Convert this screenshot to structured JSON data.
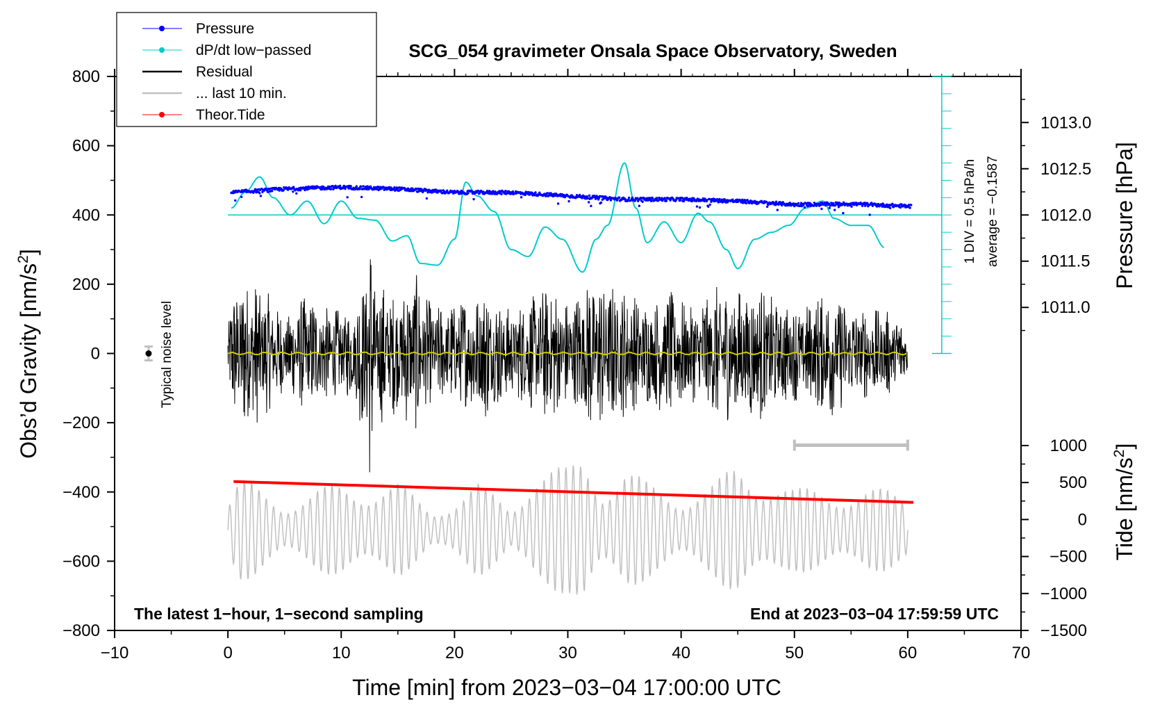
{
  "chart_data": {
    "type": "line",
    "title": "SCG_054 gravimeter Onsala Space Observatory, Sweden",
    "xlabel": "Time [min] from 2023−03−04 17:00:00 UTC",
    "ylabel_left_prefix": "Obs’d Gravity [nm/s",
    "ylabel_left_sup": "2",
    "ylabel_left_suffix": "]",
    "ylabel_pressure": "Pressure [hPa]",
    "ylabel_tide_prefix": "Tide [nm/s",
    "ylabel_tide_sup": "2",
    "ylabel_tide_suffix": "]",
    "xlim": [
      -10,
      70
    ],
    "ylim": [
      -800,
      800
    ],
    "x_ticks": [
      -10,
      0,
      10,
      20,
      30,
      40,
      50,
      60,
      70
    ],
    "x_tick_labels": [
      "−10",
      "0",
      "10",
      "20",
      "30",
      "40",
      "50",
      "60",
      "70"
    ],
    "y_ticks": [
      -800,
      -600,
      -400,
      -200,
      0,
      200,
      400,
      600,
      800
    ],
    "y_tick_labels": [
      "−800",
      "−600",
      "−400",
      "−200",
      "0",
      "200",
      "400",
      "600",
      "800"
    ],
    "pressure_axis": {
      "ticks": [
        1011.0,
        1011.5,
        1012.0,
        1012.5,
        1013.0
      ],
      "tick_labels": [
        "1011.0",
        "1011.5",
        "1012.0",
        "1012.5",
        "1013.0"
      ],
      "gravity_equivalent": [
        [
          1012.0,
          400
        ],
        [
          1013.0,
          667
        ]
      ]
    },
    "tide_axis": {
      "ticks": [
        -1500,
        -1000,
        -500,
        0,
        500,
        1000
      ],
      "tick_labels": [
        "−1500",
        "−1000",
        "−500",
        "0",
        "500",
        "1000"
      ],
      "gravity_equivalent": [
        [
          -1500,
          -800
        ],
        [
          1000,
          -266
        ]
      ]
    },
    "legend": [
      {
        "label": "Pressure",
        "color": "#0000ff",
        "marker": true
      },
      {
        "label": "dP/dt low−passed",
        "color": "#00cccc",
        "marker": true
      },
      {
        "label": "Residual",
        "color": "#000000",
        "marker": false
      },
      {
        "label": "... last 10 min.",
        "color": "#c0c0c0",
        "marker": false
      },
      {
        "label": "Theor.Tide",
        "color": "#ff0000",
        "marker": true
      }
    ],
    "dpdt_scale": {
      "label": "1 DIV = 0.5 hPa/h",
      "average_label": "average = −0.1587",
      "zero_line_gravity": 400,
      "x_position_min": 63
    },
    "noise_level": {
      "label": "Typical noise level",
      "x": -7,
      "y": 0,
      "error": 20
    },
    "last10_bar": {
      "x_start": 50,
      "x_end": 60,
      "y": -265
    },
    "footer_left": "The latest 1−hour, 1−second sampling",
    "footer_right": "End at 2023−03−04 17:59:59 UTC",
    "series": [
      {
        "name": "Pressure",
        "color": "#0000ff",
        "unit": "gravity-equivalent",
        "x": [
          0.3,
          5,
          10,
          15,
          20,
          25,
          30,
          35,
          40,
          45,
          50,
          55,
          60.3
        ],
        "y": [
          465,
          475,
          480,
          475,
          465,
          465,
          455,
          445,
          445,
          440,
          430,
          432,
          425
        ]
      },
      {
        "name": "dP/dt low-passed",
        "color": "#00cccc",
        "unit": "gravity-equivalent",
        "x": [
          0.3,
          1.5,
          2.8,
          4,
          5.5,
          7,
          8.5,
          10,
          11.5,
          13,
          14.5,
          15.8,
          17,
          18.5,
          20,
          21,
          22,
          23.5,
          25,
          26.5,
          28,
          29.5,
          31.3,
          32.5,
          33.5,
          35,
          36,
          37,
          38.5,
          40,
          41.5,
          42.5,
          44,
          45,
          46.5,
          48,
          49.5,
          51,
          52.5,
          53.5,
          55,
          56.5,
          58
        ],
        "y": [
          420,
          465,
          510,
          450,
          400,
          440,
          375,
          440,
          390,
          385,
          325,
          340,
          260,
          255,
          330,
          495,
          455,
          410,
          300,
          280,
          365,
          330,
          235,
          330,
          370,
          550,
          420,
          320,
          380,
          320,
          405,
          380,
          300,
          245,
          330,
          350,
          370,
          420,
          440,
          390,
          370,
          370,
          305
        ]
      },
      {
        "name": "Residual",
        "color": "#000000",
        "unit": "nm/s^2",
        "x_range": [
          0,
          60
        ],
        "envelope_x": [
          0,
          1,
          3,
          5,
          7,
          9,
          11,
          12,
          12.5,
          13,
          15,
          16.5,
          18,
          20,
          22.5,
          25,
          27,
          28.5,
          30,
          32,
          34,
          35.5,
          37,
          39,
          41,
          43,
          45,
          47,
          49,
          51,
          53,
          55,
          57,
          59,
          60
        ],
        "envelope_amp": [
          130,
          230,
          200,
          110,
          180,
          130,
          130,
          240,
          390,
          220,
          170,
          240,
          140,
          150,
          200,
          130,
          170,
          210,
          150,
          230,
          200,
          180,
          150,
          190,
          140,
          200,
          190,
          200,
          150,
          140,
          200,
          140,
          130,
          120,
          80
        ]
      },
      {
        "name": "... last 10 min.",
        "color": "#c0c0c0",
        "unit": "nm/s^2",
        "x_range": [
          0,
          60
        ],
        "center": -510,
        "envelope_x": [
          0,
          1,
          2,
          5,
          10,
          15,
          18,
          22,
          25,
          27,
          30,
          31.5,
          33,
          35,
          37,
          40,
          43,
          45,
          48,
          50,
          53,
          55,
          58,
          60
        ],
        "envelope_amp": [
          80,
          150,
          140,
          90,
          140,
          140,
          60,
          140,
          70,
          200,
          180,
          240,
          150,
          190,
          140,
          110,
          140,
          200,
          160,
          120,
          130,
          120,
          120,
          110
        ]
      },
      {
        "name": "Theor.Tide",
        "color": "#ff0000",
        "unit": "nm/s^2",
        "x": [
          0.5,
          60.5
        ],
        "y": [
          -370,
          -430
        ]
      },
      {
        "name": "Residual low-passed",
        "color": "#cccc00",
        "unit": "nm/s^2",
        "x": [
          0,
          60
        ],
        "y": [
          0,
          0
        ]
      }
    ]
  }
}
